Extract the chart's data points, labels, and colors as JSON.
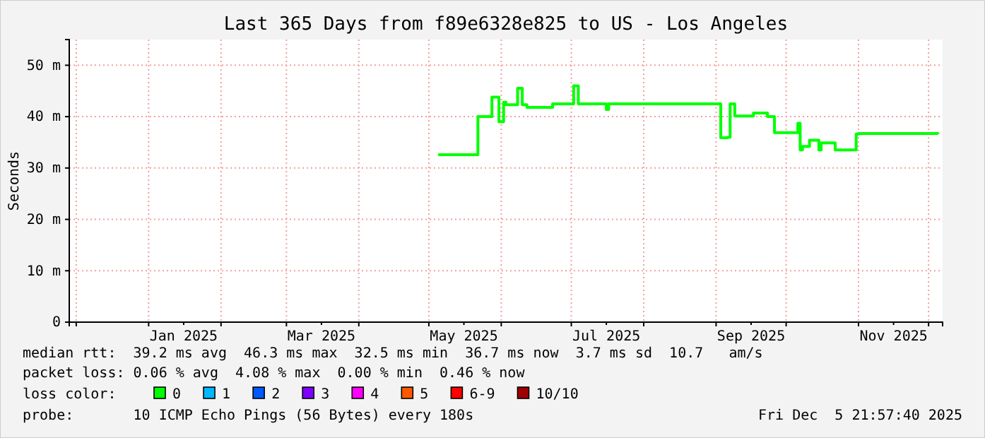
{
  "chart_data": {
    "type": "step",
    "title": "Last 365 Days from f89e6328e825 to US - Los Angeles",
    "ylabel": "Seconds",
    "x": [
      "2025-05-05",
      "2025-05-22",
      "2025-05-28",
      "2025-05-31",
      "2025-06-02",
      "2025-06-03",
      "2025-06-08",
      "2025-06-10",
      "2025-06-12",
      "2025-06-23",
      "2025-06-25",
      "2025-07-02",
      "2025-07-04",
      "2025-07-16",
      "2025-07-17",
      "2025-09-01",
      "2025-09-03",
      "2025-09-06",
      "2025-09-07",
      "2025-09-09",
      "2025-09-17",
      "2025-09-23",
      "2025-09-26",
      "2025-10-06",
      "2025-10-07",
      "2025-10-08",
      "2025-10-11",
      "2025-10-15",
      "2025-10-16",
      "2025-10-22",
      "2025-10-24",
      "2025-10-31",
      "2025-11-01",
      "2025-12-05"
    ],
    "series": [
      {
        "name": "0",
        "color": "#00ff00",
        "values": [
          32.6,
          40.0,
          43.8,
          39.0,
          42.8,
          42.3,
          45.5,
          42.3,
          41.8,
          42.5,
          42.5,
          46.0,
          42.5,
          41.4,
          42.5,
          42.5,
          35.9,
          36.0,
          42.5,
          40.1,
          40.7,
          40.0,
          36.9,
          38.7,
          33.5,
          34.2,
          35.4,
          33.5,
          34.9,
          33.5,
          33.5,
          36.6,
          36.7,
          36.6
        ]
      },
      {
        "name": "1",
        "color": "#00b8ff",
        "values": [
          null,
          null,
          null,
          null,
          null,
          null,
          null,
          null,
          null,
          null,
          null,
          null,
          null,
          null,
          null,
          null,
          null,
          null,
          null,
          null,
          null,
          null,
          null,
          null,
          null,
          null,
          null,
          null,
          null,
          null,
          null,
          null,
          null,
          null
        ]
      },
      {
        "name": "2",
        "color": "#0059ff",
        "values": [
          null,
          null,
          null,
          null,
          null,
          null,
          null,
          null,
          null,
          null,
          null,
          null,
          null,
          null,
          null,
          null,
          null,
          null,
          null,
          null,
          null,
          null,
          null,
          null,
          null,
          null,
          null,
          null,
          null,
          null,
          null,
          null,
          null,
          null
        ]
      },
      {
        "name": "3",
        "color": "#7e00ff",
        "values": [
          null,
          null,
          null,
          null,
          null,
          null,
          null,
          null,
          null,
          null,
          null,
          null,
          null,
          null,
          null,
          null,
          null,
          null,
          null,
          null,
          null,
          null,
          null,
          null,
          null,
          null,
          null,
          null,
          null,
          null,
          null,
          null,
          null,
          null
        ]
      },
      {
        "name": "4",
        "color": "#ff00ff",
        "values": [
          null,
          null,
          null,
          null,
          null,
          null,
          null,
          null,
          null,
          null,
          null,
          null,
          null,
          null,
          null,
          null,
          null,
          null,
          null,
          null,
          null,
          null,
          null,
          null,
          null,
          null,
          null,
          null,
          null,
          null,
          null,
          null,
          null,
          null
        ]
      },
      {
        "name": "5",
        "color": "#ff5900",
        "values": [
          null,
          null,
          null,
          null,
          null,
          null,
          null,
          null,
          null,
          null,
          null,
          null,
          null,
          null,
          null,
          null,
          null,
          null,
          null,
          null,
          null,
          null,
          null,
          null,
          null,
          null,
          null,
          null,
          null,
          null,
          null,
          null,
          null,
          null
        ]
      },
      {
        "name": "6-9",
        "color": "#ff0000",
        "values": [
          null,
          null,
          null,
          null,
          null,
          null,
          null,
          null,
          null,
          null,
          null,
          null,
          null,
          null,
          null,
          null,
          null,
          null,
          null,
          null,
          null,
          null,
          null,
          null,
          null,
          null,
          null,
          null,
          null,
          null,
          null,
          null,
          null,
          null
        ]
      },
      {
        "name": "10/10",
        "color": "#a10000",
        "values": [
          null,
          null,
          null,
          null,
          null,
          null,
          null,
          null,
          null,
          null,
          null,
          null,
          null,
          null,
          null,
          null,
          null,
          null,
          null,
          null,
          null,
          null,
          null,
          null,
          null,
          null,
          null,
          null,
          null,
          null,
          null,
          null,
          null,
          null
        ]
      }
    ],
    "xlim": [
      "2024-11-28",
      "2025-12-07"
    ],
    "xticks": [
      {
        "value": "2024-12-01",
        "label": null
      },
      {
        "value": "2025-01-01",
        "label": null
      },
      {
        "value": "2025-01-16",
        "label": "Jan 2025"
      },
      {
        "value": "2025-02-01",
        "label": null
      },
      {
        "value": "2025-03-01",
        "label": null
      },
      {
        "value": "2025-03-16",
        "label": "Mar 2025"
      },
      {
        "value": "2025-04-01",
        "label": null
      },
      {
        "value": "2025-05-01",
        "label": null
      },
      {
        "value": "2025-05-16",
        "label": "May 2025"
      },
      {
        "value": "2025-06-01",
        "label": null
      },
      {
        "value": "2025-07-01",
        "label": null
      },
      {
        "value": "2025-07-16",
        "label": "Jul 2025"
      },
      {
        "value": "2025-08-01",
        "label": null
      },
      {
        "value": "2025-09-01",
        "label": null
      },
      {
        "value": "2025-09-16",
        "label": "Sep 2025"
      },
      {
        "value": "2025-10-01",
        "label": null
      },
      {
        "value": "2025-11-01",
        "label": null
      },
      {
        "value": "2025-11-16",
        "label": "Nov 2025"
      },
      {
        "value": "2025-12-01",
        "label": null
      }
    ],
    "ylim": [
      0,
      55
    ],
    "yticks": [
      0,
      {
        "value": 10,
        "label": "10 m"
      },
      {
        "value": 20,
        "label": "20 m"
      },
      {
        "value": 30,
        "label": "30 m"
      },
      {
        "value": 40,
        "label": "40 m"
      },
      {
        "value": 50,
        "label": "50 m"
      }
    ],
    "grid": true,
    "legend": "bottom",
    "legend_title": "loss color:",
    "annotations": [
      "median rtt:  39.2 ms avg  46.3 ms max  32.5 ms min  36.7 ms now  3.7 ms sd  10.7   am/s",
      "packet loss: 0.06 % avg  4.08 % max  0.00 % min  0.46 % now",
      "probe:       10 ICMP Echo Pings (56 Bytes) every 180s",
      "Fri Dec  5 21:57:40 2025"
    ]
  }
}
